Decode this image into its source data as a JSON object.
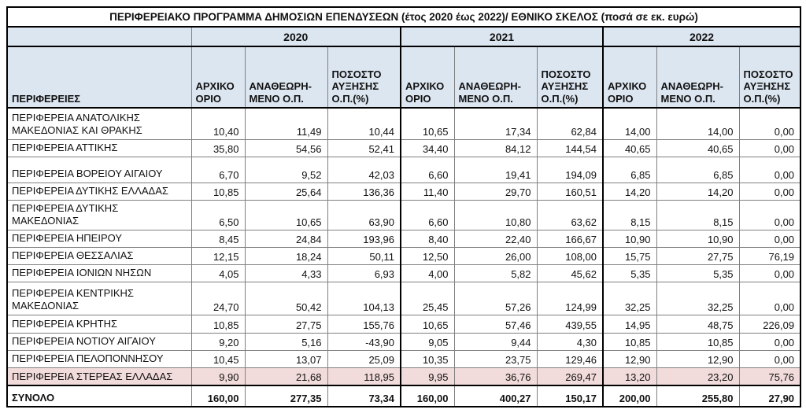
{
  "title": "ΠΕΡΙΦΕΡΕΙΑΚΟ ΠΡΟΓΡΑΜΜΑ ΔΗΜΟΣΙΩΝ ΕΠΕΝΔΥΣΕΩΝ  (έτος 2020 έως 2022)/ ΕΘΝΙΚΟ ΣΚΕΛΟΣ (ποσά σε εκ. ευρώ)",
  "years": [
    "2020",
    "2021",
    "2022"
  ],
  "col_headers": {
    "regions": "ΠΕΡΙΦΕΡΕΙΕΣ",
    "initial": "ΑΡΧΙΚΟ ΟΡΙΟ",
    "revised": "ΑΝΑΘΕΩΡΗ-ΜΕΝΟ Ο.Π.",
    "pct": "ΠΟΣΟΣΤΟ ΑΥΞΗΣΗΣ Ο.Π.(%)"
  },
  "colors": {
    "header_bg": "#dce6f1",
    "highlight_bg": "#f2dcdb",
    "thick_border": "#000000",
    "thin_border": "#808080"
  },
  "table": {
    "rows": [
      {
        "name": "ΠΕΡΙΦΕΡΕΙΑ ΑΝΑΤΟΛΙΚΗΣ\nΜΑΚΕΔΟΝΙΑΣ ΚΑΙ ΘΡΑΚΗΣ",
        "values": [
          "10,40",
          "11,49",
          "10,44",
          "10,65",
          "17,34",
          "62,84",
          "14,00",
          "14,00",
          "0,00"
        ]
      },
      {
        "name": "ΠΕΡΙΦΕΡΕΙΑ ΑΤΤΙΚΗΣ",
        "values": [
          "35,80",
          "54,56",
          "52,41",
          "34,40",
          "84,12",
          "144,54",
          "40,65",
          "40,65",
          "0,00"
        ]
      },
      {
        "name": "ΠΕΡΙΦΕΡΕΙΑ ΒΟΡΕΙΟΥ ΑΙΓΑΙΟΥ",
        "values": [
          "6,70",
          "9,52",
          "42,03",
          "6,60",
          "19,41",
          "194,09",
          "6,85",
          "6,85",
          "0,00"
        ]
      },
      {
        "name": "ΠΕΡΙΦΕΡΕΙΑ ΔΥΤΙΚΗΣ ΕΛΛΑΔΑΣ",
        "values": [
          "10,85",
          "25,64",
          "136,36",
          "11,40",
          "29,70",
          "160,51",
          "14,20",
          "14,20",
          "0,00"
        ]
      },
      {
        "name": "ΠΕΡΙΦΕΡΕΙΑ ΔΥΤΙΚΗΣ\nΜΑΚΕΔΟΝΙΑΣ",
        "values": [
          "6,50",
          "10,65",
          "63,90",
          "6,60",
          "10,80",
          "63,62",
          "8,15",
          "8,15",
          "0,00"
        ]
      },
      {
        "name": "ΠΕΡΙΦΕΡΕΙΑ ΗΠΕΙΡΟΥ",
        "values": [
          "8,45",
          "24,84",
          "193,96",
          "8,40",
          "22,40",
          "166,67",
          "10,90",
          "10,90",
          "0,00"
        ]
      },
      {
        "name": "ΠΕΡΙΦΕΡΕΙΑ ΘΕΣΣΑΛΙΑΣ",
        "values": [
          "12,15",
          "18,24",
          "50,11",
          "12,50",
          "26,00",
          "108,00",
          "15,75",
          "27,75",
          "76,19"
        ]
      },
      {
        "name": "ΠΕΡΙΦΕΡΕΙΑ ΙΟΝΙΩΝ ΝΗΣΩΝ",
        "values": [
          "4,05",
          "4,33",
          "6,93",
          "4,00",
          "5,82",
          "45,62",
          "5,35",
          "5,35",
          "0,00"
        ]
      },
      {
        "name": "ΠΕΡΙΦΕΡΕΙΑ ΚΕΝΤΡΙΚΗΣ\nΜΑΚΕΔΟΝΙΑΣ",
        "values": [
          "24,70",
          "50,42",
          "104,13",
          "25,45",
          "57,26",
          "124,99",
          "32,25",
          "32,25",
          "0,00"
        ]
      },
      {
        "name": "ΠΕΡΙΦΕΡΕΙΑ ΚΡΗΤΗΣ",
        "values": [
          "10,85",
          "27,75",
          "155,76",
          "10,65",
          "57,46",
          "439,55",
          "14,95",
          "48,75",
          "226,09"
        ]
      },
      {
        "name": "ΠΕΡΙΦΕΡΕΙΑ ΝΟΤΙΟΥ ΑΙΓΑΙΟΥ",
        "values": [
          "9,20",
          "5,16",
          "-43,90",
          "9,05",
          "9,44",
          "4,30",
          "10,85",
          "10,85",
          "0,00"
        ]
      },
      {
        "name": "ΠΕΡΙΦΕΡΕΙΑ ΠΕΛΟΠΟΝΝΗΣΟΥ",
        "values": [
          "10,45",
          "13,07",
          "25,09",
          "10,35",
          "23,75",
          "129,46",
          "12,90",
          "12,90",
          "0,00"
        ]
      },
      {
        "name": "ΠΕΡΙΦΕΡΕΙΑ ΣΤΕΡΕΑΣ ΕΛΛΑΔΑΣ",
        "values": [
          "9,90",
          "21,68",
          "118,95",
          "9,95",
          "36,76",
          "269,47",
          "13,20",
          "23,20",
          "75,76"
        ]
      }
    ],
    "total": {
      "name": "ΣΥΝΟΛΟ",
      "values": [
        "160,00",
        "277,35",
        "73,34",
        "160,00",
        "400,27",
        "150,17",
        "200,00",
        "255,80",
        "27,90"
      ]
    }
  }
}
